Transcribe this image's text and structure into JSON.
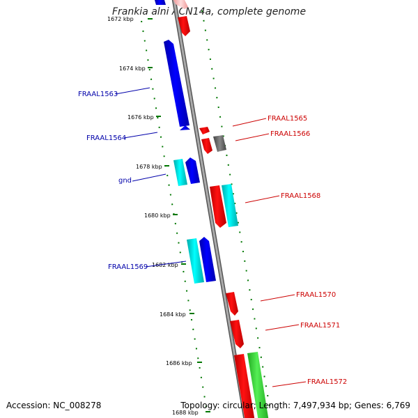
{
  "title": "Frankia alni ACN14a, complete genome",
  "footer": {
    "accession": "Accession: NC_008278",
    "summary": "Topology: circular; Length: 7,497,934 bp; Genes: 6,769"
  },
  "ticks": [
    "1672 kbp",
    "1674 kbp",
    "1676 kbp",
    "1678 kbp",
    "1680 kbp",
    "1682 kbp",
    "1684 kbp",
    "1686 kbp",
    "1688 kbp"
  ],
  "left_labels": [
    "FRAAL1563",
    "FRAAL1564",
    "gnd",
    "FRAAL1569"
  ],
  "right_labels": [
    "FRAAL1565",
    "FRAAL1566",
    "FRAAL1568",
    "FRAAL1570",
    "FRAAL1571",
    "FRAAL1572"
  ],
  "colors": {
    "forward_cds": "#0000ee",
    "forward_rna": "#00e8ee",
    "reverse_cds": "#ee0000",
    "reverse_rna": "#00e8ee",
    "green_feature": "#33cc33",
    "gray_feature": "#666666",
    "backbone": "#888888",
    "left_label": "#0000aa",
    "right_label": "#cc0000",
    "tick": "#007700"
  }
}
